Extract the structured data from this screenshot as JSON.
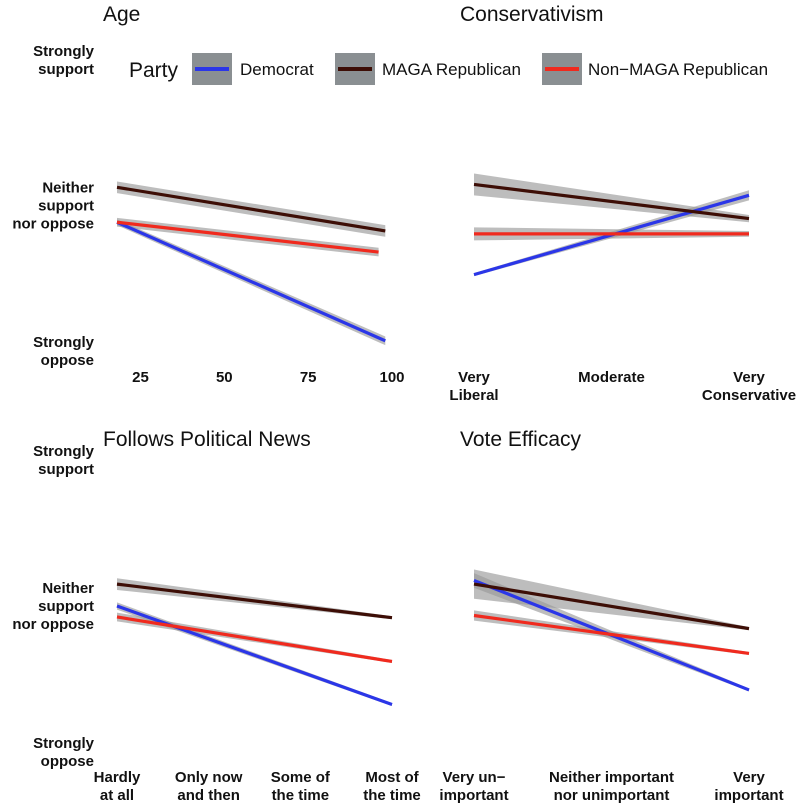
{
  "chart_data": {
    "type": "line",
    "legend": {
      "title": "Party",
      "position": "top",
      "entries": [
        {
          "name": "Democrat",
          "color": "#2b36e8"
        },
        {
          "name": "MAGA Republican",
          "color": "#3d0e06"
        },
        {
          "name": "Non−MAGA Republican",
          "color": "#f02a1e"
        }
      ]
    },
    "y_axis": {
      "range": [
        1,
        5
      ],
      "ticks": [
        {
          "value": 5,
          "lines": [
            "Strongly",
            "support"
          ]
        },
        {
          "value": 3,
          "lines": [
            "Neither",
            "support",
            "nor oppose"
          ]
        },
        {
          "value": 1,
          "lines": [
            "Strongly",
            "oppose"
          ]
        }
      ]
    },
    "panels": [
      {
        "title": "Age",
        "xlim": [
          18,
          100
        ],
        "x_ticks": [
          {
            "value": 25,
            "lines": [
              "25"
            ]
          },
          {
            "value": 50,
            "lines": [
              "50"
            ]
          },
          {
            "value": 75,
            "lines": [
              "75"
            ]
          },
          {
            "value": 100,
            "lines": [
              "100"
            ]
          }
        ],
        "series": [
          {
            "name": "Democrat",
            "x": [
              18,
              98
            ],
            "y": [
              2.77,
              1.14
            ],
            "band": [
              0.04,
              0.06
            ]
          },
          {
            "name": "MAGA Republican",
            "x": [
              18,
              98
            ],
            "y": [
              3.25,
              2.65
            ],
            "band": [
              0.08,
              0.08
            ]
          },
          {
            "name": "Non−MAGA Republican",
            "x": [
              18,
              96
            ],
            "y": [
              2.77,
              2.36
            ],
            "band": [
              0.06,
              0.06
            ]
          }
        ]
      },
      {
        "title": "Conservativism",
        "xlim": [
          1,
          7
        ],
        "x_ticks": [
          {
            "value": 1,
            "lines": [
              "Very",
              "Liberal"
            ]
          },
          {
            "value": 4,
            "lines": [
              "Moderate"
            ]
          },
          {
            "value": 7,
            "lines": [
              "Very",
              "Conservative"
            ]
          }
        ],
        "series": [
          {
            "name": "Democrat",
            "x": [
              1,
              7
            ],
            "y": [
              2.05,
              3.14
            ],
            "band": [
              0.02,
              0.07
            ]
          },
          {
            "name": "MAGA Republican",
            "x": [
              1,
              7
            ],
            "y": [
              3.29,
              2.82
            ],
            "band": [
              0.15,
              0.05
            ]
          },
          {
            "name": "Non−MAGA Republican",
            "x": [
              1,
              7
            ],
            "y": [
              2.61,
              2.61
            ],
            "band": [
              0.09,
              0.04
            ]
          }
        ]
      },
      {
        "title": "Follows Political News",
        "xlim": [
          1,
          4
        ],
        "x_ticks": [
          {
            "value": 1,
            "lines": [
              "Hardly",
              "at all"
            ]
          },
          {
            "value": 2,
            "lines": [
              "Only now",
              "and then"
            ]
          },
          {
            "value": 3,
            "lines": [
              "Some of",
              "the time"
            ]
          },
          {
            "value": 4,
            "lines": [
              "Most of",
              "the time"
            ]
          }
        ],
        "series": [
          {
            "name": "Democrat",
            "x": [
              1,
              4
            ],
            "y": [
              3.0,
              1.65
            ],
            "band": [
              0.05,
              0.02
            ]
          },
          {
            "name": "MAGA Republican",
            "x": [
              1,
              4
            ],
            "y": [
              3.3,
              2.84
            ],
            "band": [
              0.08,
              0.02
            ]
          },
          {
            "name": "Non−MAGA Republican",
            "x": [
              1,
              4
            ],
            "y": [
              2.85,
              2.24
            ],
            "band": [
              0.06,
              0.02
            ]
          }
        ]
      },
      {
        "title": "Vote Efficacy",
        "xlim": [
          1,
          4
        ],
        "x_ticks": [
          {
            "value": 1,
            "lines": [
              "Very un−",
              "important"
            ]
          },
          {
            "value": 2.5,
            "lines": [
              "Neither important",
              "nor unimportant"
            ]
          },
          {
            "value": 4,
            "lines": [
              "Very",
              "important"
            ]
          }
        ],
        "series": [
          {
            "name": "Democrat",
            "x": [
              1,
              4
            ],
            "y": [
              3.35,
              1.85
            ],
            "band": [
              0.1,
              0.02
            ]
          },
          {
            "name": "MAGA Republican",
            "x": [
              1,
              4
            ],
            "y": [
              3.3,
              2.69
            ],
            "band": [
              0.2,
              0.02
            ]
          },
          {
            "name": "Non−MAGA Republican",
            "x": [
              1,
              4
            ],
            "y": [
              2.87,
              2.35
            ],
            "band": [
              0.07,
              0.02
            ]
          }
        ]
      }
    ]
  }
}
